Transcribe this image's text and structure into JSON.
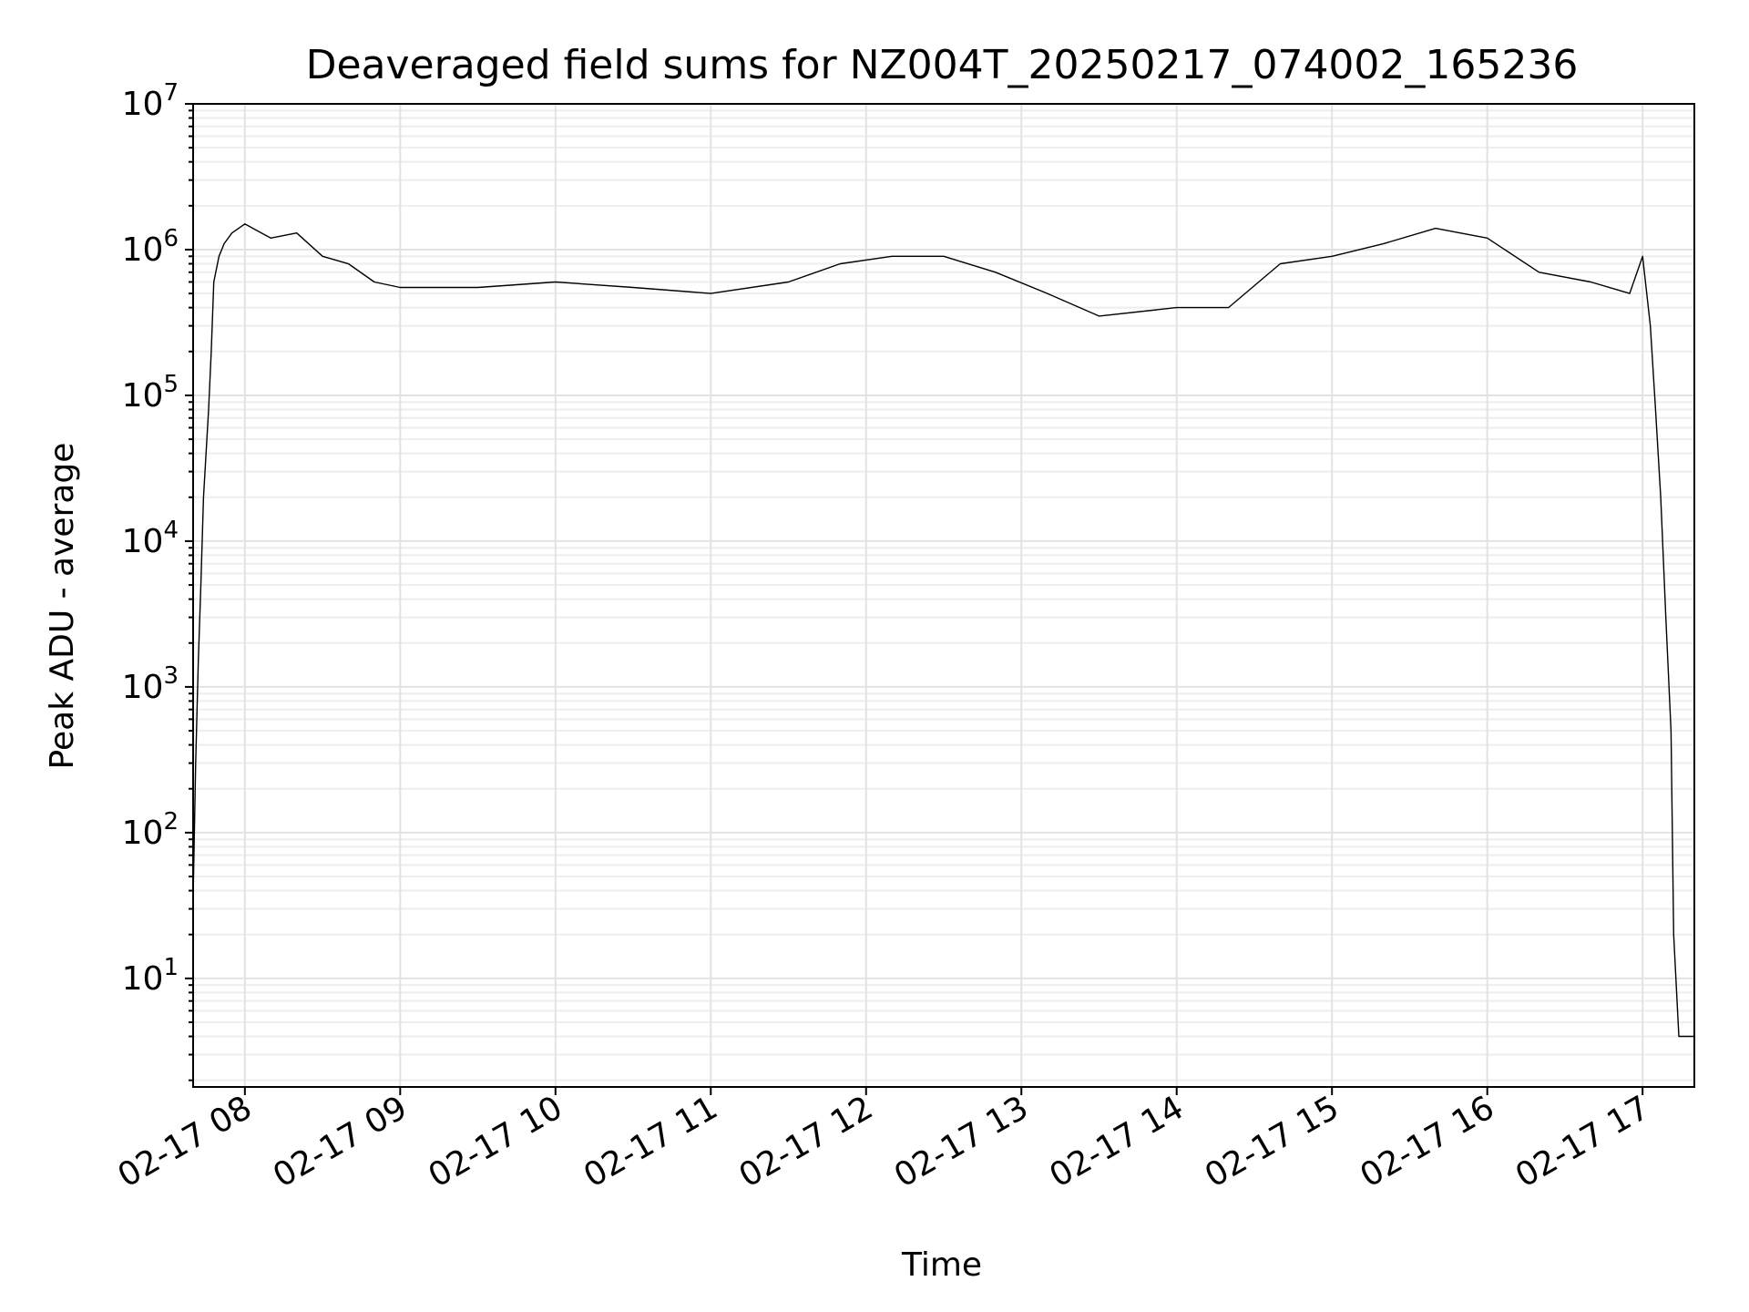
{
  "chart_data": {
    "type": "line",
    "title": "Deaveraged field sums for NZ004T_20250217_074002_165236",
    "xlabel": "Time",
    "ylabel": "Peak ADU - average",
    "yscale": "log",
    "ylim": [
      1.8,
      10000000
    ],
    "xlim": [
      "2025-02-17 07:40",
      "2025-02-17 17:20"
    ],
    "x_tick_labels": [
      "02-17 08",
      "02-17 09",
      "02-17 10",
      "02-17 11",
      "02-17 12",
      "02-17 13",
      "02-17 14",
      "02-17 15",
      "02-17 16",
      "02-17 17"
    ],
    "x_ticks": [
      "2025-02-17 08:00",
      "2025-02-17 09:00",
      "2025-02-17 10:00",
      "2025-02-17 11:00",
      "2025-02-17 12:00",
      "2025-02-17 13:00",
      "2025-02-17 14:00",
      "2025-02-17 15:00",
      "2025-02-17 16:00",
      "2025-02-17 17:00"
    ],
    "y_ticks": [
      {
        "value": 10,
        "base": "10",
        "exp": "1"
      },
      {
        "value": 100,
        "base": "10",
        "exp": "2"
      },
      {
        "value": 1000,
        "base": "10",
        "exp": "3"
      },
      {
        "value": 10000,
        "base": "10",
        "exp": "4"
      },
      {
        "value": 100000,
        "base": "10",
        "exp": "5"
      },
      {
        "value": 1000000,
        "base": "10",
        "exp": "6"
      },
      {
        "value": 10000000,
        "base": "10",
        "exp": "7"
      }
    ],
    "grid": true,
    "series_color": "#000000",
    "series": [
      {
        "x": [
          "2025-02-17 07:40",
          "2025-02-17 07:41",
          "2025-02-17 07:42",
          "2025-02-17 07:43",
          "2025-02-17 07:44",
          "2025-02-17 07:45",
          "2025-02-17 07:46",
          "2025-02-17 07:47",
          "2025-02-17 07:48",
          "2025-02-17 07:50",
          "2025-02-17 07:52",
          "2025-02-17 07:55",
          "2025-02-17 08:00",
          "2025-02-17 08:10",
          "2025-02-17 08:20",
          "2025-02-17 08:30",
          "2025-02-17 08:40",
          "2025-02-17 08:50",
          "2025-02-17 09:00",
          "2025-02-17 09:30",
          "2025-02-17 10:00",
          "2025-02-17 10:30",
          "2025-02-17 11:00",
          "2025-02-17 11:30",
          "2025-02-17 11:50",
          "2025-02-17 12:10",
          "2025-02-17 12:30",
          "2025-02-17 12:50",
          "2025-02-17 13:10",
          "2025-02-17 13:30",
          "2025-02-17 14:00",
          "2025-02-17 14:20",
          "2025-02-17 14:40",
          "2025-02-17 15:00",
          "2025-02-17 15:20",
          "2025-02-17 15:40",
          "2025-02-17 16:00",
          "2025-02-17 16:20",
          "2025-02-17 16:40",
          "2025-02-17 16:55",
          "2025-02-17 17:00",
          "2025-02-17 17:03",
          "2025-02-17 17:05",
          "2025-02-17 17:07",
          "2025-02-17 17:09",
          "2025-02-17 17:11",
          "2025-02-17 17:12",
          "2025-02-17 17:14",
          "2025-02-17 17:17",
          "2025-02-17 17:20"
        ],
        "y": [
          35,
          300,
          1500,
          5000,
          20000,
          40000,
          80000,
          200000,
          600000,
          900000,
          1100000,
          1300000,
          1500000,
          1200000,
          1300000,
          900000,
          800000,
          600000,
          550000,
          550000,
          600000,
          550000,
          500000,
          600000,
          800000,
          900000,
          900000,
          700000,
          500000,
          350000,
          400000,
          400000,
          800000,
          900000,
          1100000,
          1400000,
          1200000,
          700000,
          600000,
          500000,
          900000,
          300000,
          80000,
          20000,
          3000,
          500,
          20,
          4,
          4,
          4
        ]
      }
    ]
  }
}
